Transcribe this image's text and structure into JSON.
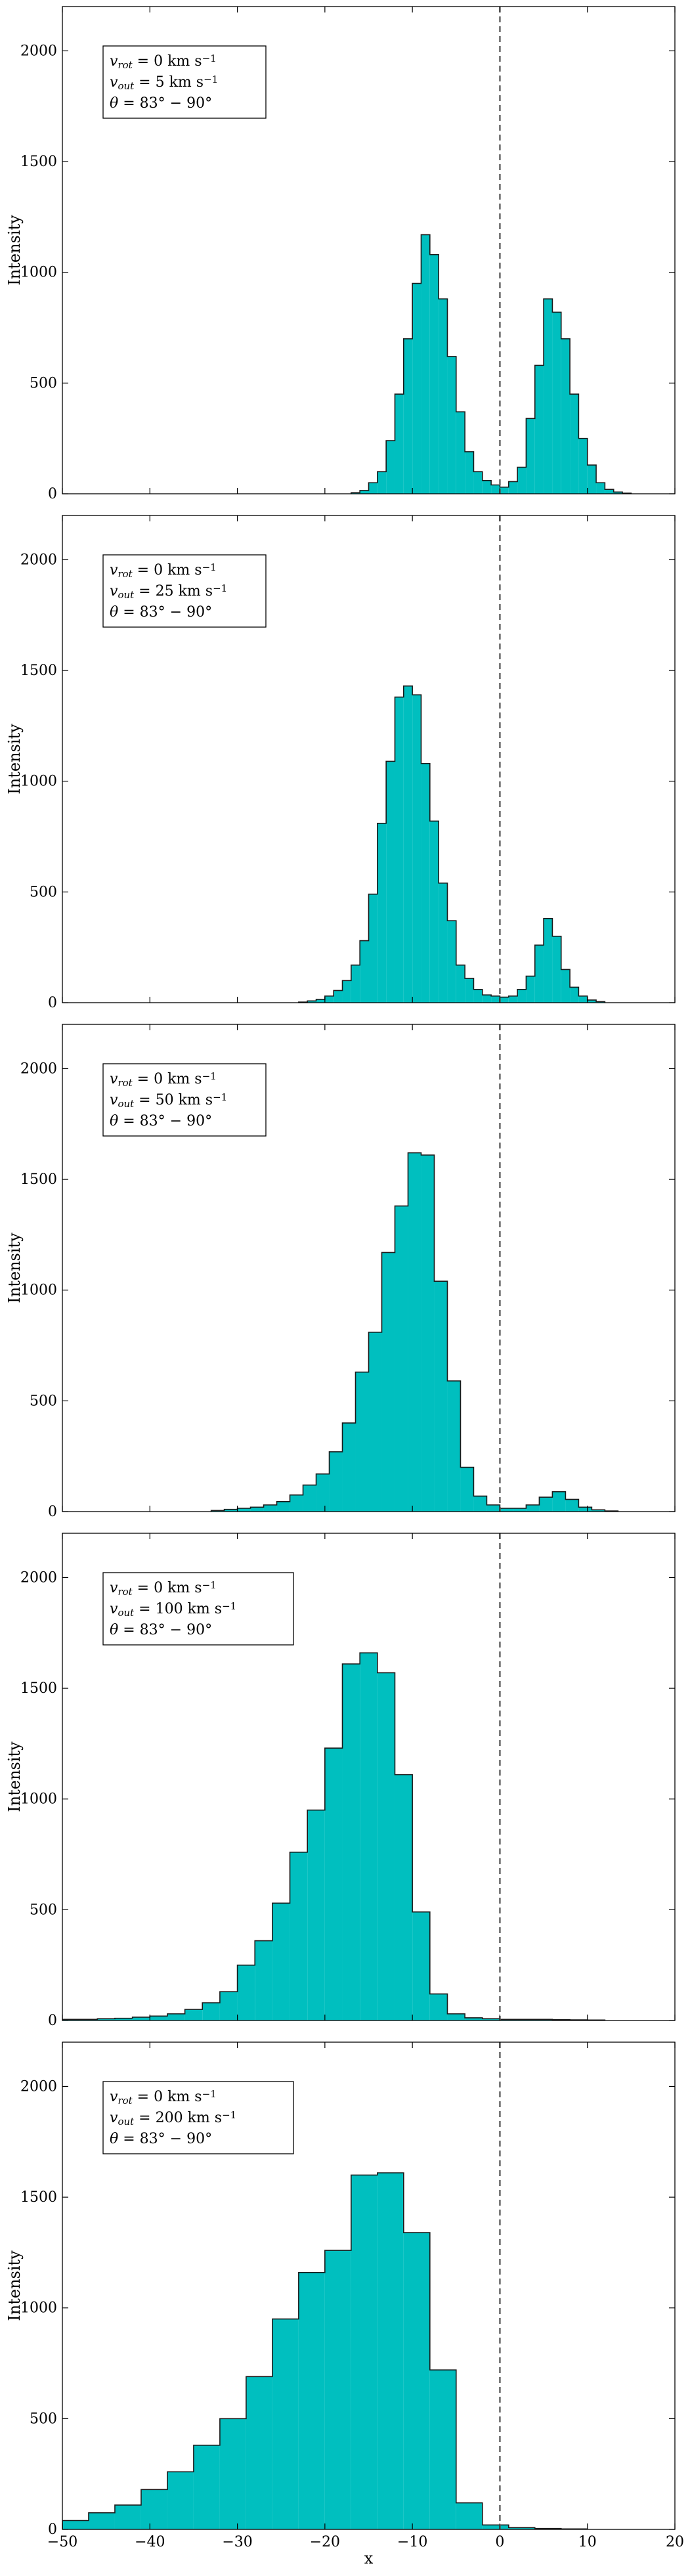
{
  "colors": {
    "fill": "#00bfbf",
    "edge": "#1a1a1a",
    "zero_line": "#666666"
  },
  "chart_data": [
    {
      "type": "bar",
      "ylabel": "Intensity",
      "xlabel": "",
      "xlim": [
        -50,
        20
      ],
      "ylim": [
        0,
        2200
      ],
      "yticks": [
        0,
        500,
        1000,
        1500,
        2000
      ],
      "vline_x": 0,
      "legend_placement": "top-left",
      "legend": [
        {
          "lhs": "v",
          "sub": "rot",
          "rhs": " = 0 km s",
          "sup": "−1"
        },
        {
          "lhs": "v",
          "sub": "out",
          "rhs": " = 5 km s",
          "sup": "−1"
        },
        {
          "lhs": "θ",
          "sub": "",
          "rhs": " = 83° − 90°",
          "sup": ""
        }
      ],
      "bins": [
        {
          "x0": -17,
          "x1": -16,
          "y": 5
        },
        {
          "x0": -16,
          "x1": -15,
          "y": 15
        },
        {
          "x0": -15,
          "x1": -14,
          "y": 50
        },
        {
          "x0": -14,
          "x1": -13,
          "y": 100
        },
        {
          "x0": -13,
          "x1": -12,
          "y": 240
        },
        {
          "x0": -12,
          "x1": -11,
          "y": 450
        },
        {
          "x0": -11,
          "x1": -10,
          "y": 700
        },
        {
          "x0": -10,
          "x1": -9,
          "y": 950
        },
        {
          "x0": -9,
          "x1": -8,
          "y": 1170
        },
        {
          "x0": -8,
          "x1": -7,
          "y": 1080
        },
        {
          "x0": -7,
          "x1": -6,
          "y": 880
        },
        {
          "x0": -6,
          "x1": -5,
          "y": 620
        },
        {
          "x0": -5,
          "x1": -4,
          "y": 370
        },
        {
          "x0": -4,
          "x1": -3,
          "y": 190
        },
        {
          "x0": -3,
          "x1": -2,
          "y": 100
        },
        {
          "x0": -2,
          "x1": -1,
          "y": 60
        },
        {
          "x0": -1,
          "x1": 0,
          "y": 40
        },
        {
          "x0": 0,
          "x1": 1,
          "y": 30
        },
        {
          "x0": 1,
          "x1": 2,
          "y": 55
        },
        {
          "x0": 2,
          "x1": 3,
          "y": 120
        },
        {
          "x0": 3,
          "x1": 4,
          "y": 340
        },
        {
          "x0": 4,
          "x1": 5,
          "y": 580
        },
        {
          "x0": 5,
          "x1": 6,
          "y": 880
        },
        {
          "x0": 6,
          "x1": 7,
          "y": 820
        },
        {
          "x0": 7,
          "x1": 8,
          "y": 700
        },
        {
          "x0": 8,
          "x1": 9,
          "y": 450
        },
        {
          "x0": 9,
          "x1": 10,
          "y": 250
        },
        {
          "x0": 10,
          "x1": 11,
          "y": 130
        },
        {
          "x0": 11,
          "x1": 12,
          "y": 50
        },
        {
          "x0": 12,
          "x1": 13,
          "y": 20
        },
        {
          "x0": 13,
          "x1": 14,
          "y": 8
        },
        {
          "x0": 14,
          "x1": 15,
          "y": 3
        }
      ]
    },
    {
      "type": "bar",
      "ylabel": "Intensity",
      "xlabel": "",
      "xlim": [
        -50,
        20
      ],
      "ylim": [
        0,
        2200
      ],
      "yticks": [
        0,
        500,
        1000,
        1500,
        2000
      ],
      "vline_x": 0,
      "legend_placement": "top-left",
      "legend": [
        {
          "lhs": "v",
          "sub": "rot",
          "rhs": " = 0 km s",
          "sup": "−1"
        },
        {
          "lhs": "v",
          "sub": "out",
          "rhs": " = 25 km s",
          "sup": "−1"
        },
        {
          "lhs": "θ",
          "sub": "",
          "rhs": " = 83° − 90°",
          "sup": ""
        }
      ],
      "bins": [
        {
          "x0": -23,
          "x1": -22,
          "y": 3
        },
        {
          "x0": -22,
          "x1": -21,
          "y": 8
        },
        {
          "x0": -21,
          "x1": -20,
          "y": 15
        },
        {
          "x0": -20,
          "x1": -19,
          "y": 30
        },
        {
          "x0": -19,
          "x1": -18,
          "y": 55
        },
        {
          "x0": -18,
          "x1": -17,
          "y": 100
        },
        {
          "x0": -17,
          "x1": -16,
          "y": 170
        },
        {
          "x0": -16,
          "x1": -15,
          "y": 280
        },
        {
          "x0": -15,
          "x1": -14,
          "y": 490
        },
        {
          "x0": -14,
          "x1": -13,
          "y": 810
        },
        {
          "x0": -13,
          "x1": -12,
          "y": 1090
        },
        {
          "x0": -12,
          "x1": -11,
          "y": 1380
        },
        {
          "x0": -11,
          "x1": -10,
          "y": 1430
        },
        {
          "x0": -10,
          "x1": -9,
          "y": 1390
        },
        {
          "x0": -9,
          "x1": -8,
          "y": 1080
        },
        {
          "x0": -8,
          "x1": -7,
          "y": 820
        },
        {
          "x0": -7,
          "x1": -6,
          "y": 540
        },
        {
          "x0": -6,
          "x1": -5,
          "y": 370
        },
        {
          "x0": -5,
          "x1": -4,
          "y": 170
        },
        {
          "x0": -4,
          "x1": -3,
          "y": 110
        },
        {
          "x0": -3,
          "x1": -2,
          "y": 60
        },
        {
          "x0": -2,
          "x1": -1,
          "y": 35
        },
        {
          "x0": -1,
          "x1": 0,
          "y": 30
        },
        {
          "x0": 0,
          "x1": 1,
          "y": 25
        },
        {
          "x0": 1,
          "x1": 2,
          "y": 30
        },
        {
          "x0": 2,
          "x1": 3,
          "y": 60
        },
        {
          "x0": 3,
          "x1": 4,
          "y": 120
        },
        {
          "x0": 4,
          "x1": 5,
          "y": 260
        },
        {
          "x0": 5,
          "x1": 6,
          "y": 380
        },
        {
          "x0": 6,
          "x1": 7,
          "y": 300
        },
        {
          "x0": 7,
          "x1": 8,
          "y": 150
        },
        {
          "x0": 8,
          "x1": 9,
          "y": 70
        },
        {
          "x0": 9,
          "x1": 10,
          "y": 30
        },
        {
          "x0": 10,
          "x1": 11,
          "y": 12
        },
        {
          "x0": 11,
          "x1": 12,
          "y": 5
        }
      ]
    },
    {
      "type": "bar",
      "ylabel": "Intensity",
      "xlabel": "",
      "xlim": [
        -50,
        20
      ],
      "ylim": [
        0,
        2200
      ],
      "yticks": [
        0,
        500,
        1000,
        1500,
        2000
      ],
      "vline_x": 0,
      "legend_placement": "top-left",
      "legend": [
        {
          "lhs": "v",
          "sub": "rot",
          "rhs": " = 0 km s",
          "sup": "−1"
        },
        {
          "lhs": "v",
          "sub": "out",
          "rhs": " = 50 km s",
          "sup": "−1"
        },
        {
          "lhs": "θ",
          "sub": "",
          "rhs": " = 83° − 90°",
          "sup": ""
        }
      ],
      "bins": [
        {
          "x0": -33,
          "x1": -31.5,
          "y": 5
        },
        {
          "x0": -31.5,
          "x1": -30,
          "y": 10
        },
        {
          "x0": -30,
          "x1": -28.5,
          "y": 15
        },
        {
          "x0": -28.5,
          "x1": -27,
          "y": 20
        },
        {
          "x0": -27,
          "x1": -25.5,
          "y": 30
        },
        {
          "x0": -25.5,
          "x1": -24,
          "y": 45
        },
        {
          "x0": -24,
          "x1": -22.5,
          "y": 75
        },
        {
          "x0": -22.5,
          "x1": -21,
          "y": 120
        },
        {
          "x0": -21,
          "x1": -19.5,
          "y": 170
        },
        {
          "x0": -19.5,
          "x1": -18,
          "y": 270
        },
        {
          "x0": -18,
          "x1": -16.5,
          "y": 400
        },
        {
          "x0": -16.5,
          "x1": -15,
          "y": 630
        },
        {
          "x0": -15,
          "x1": -13.5,
          "y": 810
        },
        {
          "x0": -13.5,
          "x1": -12,
          "y": 1170
        },
        {
          "x0": -12,
          "x1": -10.5,
          "y": 1380
        },
        {
          "x0": -10.5,
          "x1": -9,
          "y": 1620
        },
        {
          "x0": -9,
          "x1": -7.5,
          "y": 1610
        },
        {
          "x0": -7.5,
          "x1": -6,
          "y": 1040
        },
        {
          "x0": -6,
          "x1": -4.5,
          "y": 590
        },
        {
          "x0": -4.5,
          "x1": -3,
          "y": 200
        },
        {
          "x0": -3,
          "x1": -1.5,
          "y": 70
        },
        {
          "x0": -1.5,
          "x1": 0,
          "y": 30
        },
        {
          "x0": 0,
          "x1": 1.5,
          "y": 15
        },
        {
          "x0": 1.5,
          "x1": 3,
          "y": 15
        },
        {
          "x0": 3,
          "x1": 4.5,
          "y": 30
        },
        {
          "x0": 4.5,
          "x1": 6,
          "y": 65
        },
        {
          "x0": 6,
          "x1": 7.5,
          "y": 90
        },
        {
          "x0": 7.5,
          "x1": 9,
          "y": 55
        },
        {
          "x0": 9,
          "x1": 10.5,
          "y": 20
        },
        {
          "x0": 10.5,
          "x1": 12,
          "y": 8
        },
        {
          "x0": 12,
          "x1": 13.5,
          "y": 3
        }
      ]
    },
    {
      "type": "bar",
      "ylabel": "Intensity",
      "xlabel": "",
      "xlim": [
        -50,
        20
      ],
      "ylim": [
        0,
        2200
      ],
      "yticks": [
        0,
        500,
        1000,
        1500,
        2000
      ],
      "vline_x": 0,
      "legend_placement": "top-left",
      "legend": [
        {
          "lhs": "v",
          "sub": "rot",
          "rhs": " = 0 km s",
          "sup": "−1"
        },
        {
          "lhs": "v",
          "sub": "out",
          "rhs": " = 100 km s",
          "sup": "−1"
        },
        {
          "lhs": "θ",
          "sub": "",
          "rhs": " = 83° − 90°",
          "sup": ""
        }
      ],
      "bins": [
        {
          "x0": -50,
          "x1": -48,
          "y": 5
        },
        {
          "x0": -48,
          "x1": -46,
          "y": 5
        },
        {
          "x0": -46,
          "x1": -44,
          "y": 8
        },
        {
          "x0": -44,
          "x1": -42,
          "y": 10
        },
        {
          "x0": -42,
          "x1": -40,
          "y": 15
        },
        {
          "x0": -40,
          "x1": -38,
          "y": 20
        },
        {
          "x0": -38,
          "x1": -36,
          "y": 30
        },
        {
          "x0": -36,
          "x1": -34,
          "y": 50
        },
        {
          "x0": -34,
          "x1": -32,
          "y": 80
        },
        {
          "x0": -32,
          "x1": -30,
          "y": 130
        },
        {
          "x0": -30,
          "x1": -28,
          "y": 250
        },
        {
          "x0": -28,
          "x1": -26,
          "y": 360
        },
        {
          "x0": -26,
          "x1": -24,
          "y": 530
        },
        {
          "x0": -24,
          "x1": -22,
          "y": 760
        },
        {
          "x0": -22,
          "x1": -20,
          "y": 950
        },
        {
          "x0": -20,
          "x1": -18,
          "y": 1230
        },
        {
          "x0": -18,
          "x1": -16,
          "y": 1610
        },
        {
          "x0": -16,
          "x1": -14,
          "y": 1660
        },
        {
          "x0": -14,
          "x1": -12,
          "y": 1570
        },
        {
          "x0": -12,
          "x1": -10,
          "y": 1110
        },
        {
          "x0": -10,
          "x1": -8,
          "y": 490
        },
        {
          "x0": -8,
          "x1": -6,
          "y": 120
        },
        {
          "x0": -6,
          "x1": -4,
          "y": 30
        },
        {
          "x0": -4,
          "x1": -2,
          "y": 12
        },
        {
          "x0": -2,
          "x1": 0,
          "y": 8
        },
        {
          "x0": 0,
          "x1": 2,
          "y": 5
        },
        {
          "x0": 2,
          "x1": 4,
          "y": 5
        },
        {
          "x0": 4,
          "x1": 6,
          "y": 5
        },
        {
          "x0": 6,
          "x1": 8,
          "y": 4
        },
        {
          "x0": 8,
          "x1": 10,
          "y": 3
        },
        {
          "x0": 10,
          "x1": 12,
          "y": 2
        }
      ]
    },
    {
      "type": "bar",
      "ylabel": "Intensity",
      "xlabel": "x",
      "xlim": [
        -50,
        20
      ],
      "ylim": [
        0,
        2200
      ],
      "yticks": [
        0,
        500,
        1000,
        1500,
        2000
      ],
      "xticks": [
        -50,
        -40,
        -30,
        -20,
        -10,
        0,
        10,
        20
      ],
      "vline_x": 0,
      "legend_placement": "top-left",
      "legend": [
        {
          "lhs": "v",
          "sub": "rot",
          "rhs": " = 0 km s",
          "sup": "−1"
        },
        {
          "lhs": "v",
          "sub": "out",
          "rhs": " = 200 km s",
          "sup": "−1"
        },
        {
          "lhs": "θ",
          "sub": "",
          "rhs": " = 83° − 90°",
          "sup": ""
        }
      ],
      "bins": [
        {
          "x0": -50,
          "x1": -47,
          "y": 40
        },
        {
          "x0": -47,
          "x1": -44,
          "y": 75
        },
        {
          "x0": -44,
          "x1": -41,
          "y": 110
        },
        {
          "x0": -41,
          "x1": -38,
          "y": 180
        },
        {
          "x0": -38,
          "x1": -35,
          "y": 260
        },
        {
          "x0": -35,
          "x1": -32,
          "y": 380
        },
        {
          "x0": -32,
          "x1": -29,
          "y": 500
        },
        {
          "x0": -29,
          "x1": -26,
          "y": 690
        },
        {
          "x0": -26,
          "x1": -23,
          "y": 950
        },
        {
          "x0": -23,
          "x1": -20,
          "y": 1160
        },
        {
          "x0": -20,
          "x1": -17,
          "y": 1260
        },
        {
          "x0": -17,
          "x1": -14,
          "y": 1600
        },
        {
          "x0": -14,
          "x1": -11,
          "y": 1610
        },
        {
          "x0": -11,
          "x1": -8,
          "y": 1340
        },
        {
          "x0": -8,
          "x1": -5,
          "y": 720
        },
        {
          "x0": -5,
          "x1": -2,
          "y": 120
        },
        {
          "x0": -2,
          "x1": 1,
          "y": 20
        },
        {
          "x0": 1,
          "x1": 4,
          "y": 8
        },
        {
          "x0": 4,
          "x1": 7,
          "y": 4
        },
        {
          "x0": 7,
          "x1": 10,
          "y": 2
        }
      ]
    }
  ]
}
